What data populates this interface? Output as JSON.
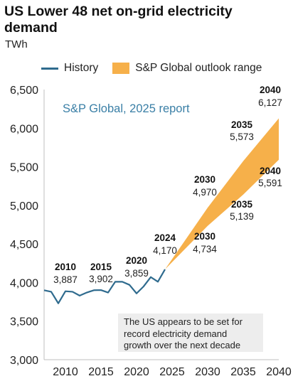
{
  "chart_data": {
    "type": "line",
    "title": "US Lower 48 net on-grid electricity demand",
    "ylabel": "TWh",
    "ylim": [
      3000,
      6500
    ],
    "xlim": [
      2007,
      2040
    ],
    "yticks": [
      3000,
      3500,
      4000,
      4500,
      5000,
      5500,
      6000,
      6500
    ],
    "xticks": [
      2010,
      2015,
      2020,
      2025,
      2030,
      2035,
      2040
    ],
    "ytick_labels": [
      "3,000",
      "3,500",
      "4,000",
      "4,500",
      "5,000",
      "5,500",
      "6,000",
      "6,500"
    ],
    "xtick_labels": [
      "2010",
      "2015",
      "2020",
      "2025",
      "2030",
      "2035",
      "2040"
    ],
    "grid": false,
    "legend": [
      "History",
      "S&P Global outlook range"
    ],
    "legend_position": "top",
    "series": [
      {
        "name": "History",
        "type": "line",
        "color": "#2f6b8e",
        "x": [
          2007,
          2008,
          2009,
          2010,
          2011,
          2012,
          2013,
          2014,
          2015,
          2016,
          2017,
          2018,
          2019,
          2020,
          2021,
          2022,
          2023,
          2024
        ],
        "y": [
          3900,
          3880,
          3730,
          3887,
          3880,
          3830,
          3870,
          3900,
          3902,
          3870,
          4010,
          4010,
          3970,
          3859,
          3950,
          4070,
          4010,
          4170
        ]
      },
      {
        "name": "S&P Global outlook range",
        "type": "area",
        "color": "#f6b04a",
        "x": [
          2024,
          2030,
          2035,
          2040
        ],
        "lower": [
          4170,
          4734,
          5139,
          5591
        ],
        "upper": [
          4170,
          4970,
          5573,
          6127
        ]
      }
    ],
    "annotations": [
      {
        "year": "2010",
        "value": "3,887",
        "x": 2010,
        "y": 3887
      },
      {
        "year": "2015",
        "value": "3,902",
        "x": 2015,
        "y": 3902
      },
      {
        "year": "2020",
        "value": "3,859",
        "x": 2020,
        "y": 3859
      },
      {
        "year": "2024",
        "value": "4,170",
        "x": 2024,
        "y": 4170
      },
      {
        "year": "2030",
        "value": "4,970",
        "x": 2030,
        "y": 4970
      },
      {
        "year": "2030",
        "value": "4,734",
        "x": 2030,
        "y": 4734
      },
      {
        "year": "2035",
        "value": "5,573",
        "x": 2035,
        "y": 5573
      },
      {
        "year": "2035",
        "value": "5,139",
        "x": 2035,
        "y": 5139
      },
      {
        "year": "2040",
        "value": "6,127",
        "x": 2040,
        "y": 6127
      },
      {
        "year": "2040",
        "value": "5,591",
        "x": 2040,
        "y": 5591
      }
    ],
    "source_label": "S&P Global, 2025 report",
    "note": [
      "The US appears to be set for",
      "record electricity demand",
      "growth over the next decade"
    ]
  },
  "colors": {
    "history": "#2f6b8e",
    "outlook": "#f6b04a",
    "note_bg": "#ededed",
    "source_label": "#3a7fa6"
  }
}
